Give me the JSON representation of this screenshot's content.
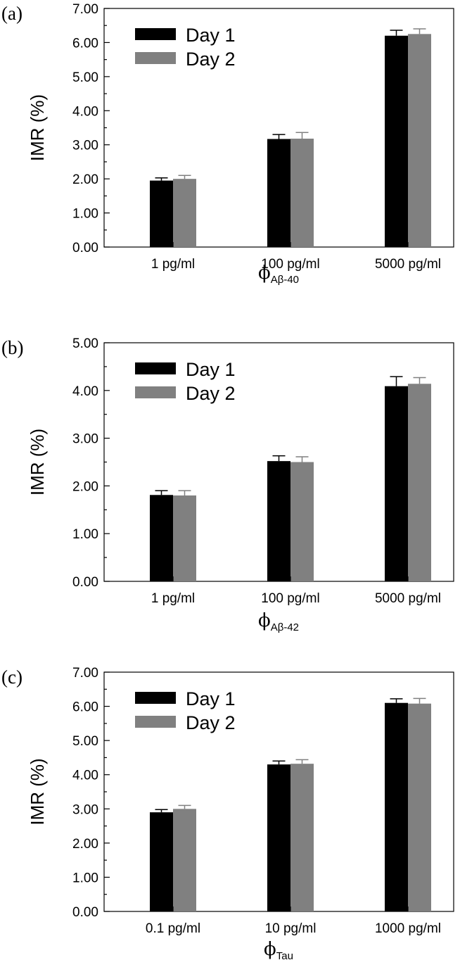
{
  "legend": {
    "series": [
      "Day 1",
      "Day 2"
    ]
  },
  "colors": {
    "day1": "#000000",
    "day2": "#808080",
    "error_day1": "#000000",
    "error_day2": "#808080"
  },
  "chart_data": [
    {
      "type": "bar",
      "panel_label": "(a)",
      "ylabel": "IMR (%)",
      "xlabel": {
        "symbol": "ϕ",
        "subscript": "Aβ-40"
      },
      "ylim": [
        0,
        7
      ],
      "yticks": [
        "0.00",
        "1.00",
        "2.00",
        "3.00",
        "4.00",
        "5.00",
        "6.00",
        "7.00"
      ],
      "categories": [
        "1 pg/ml",
        "100 pg/ml",
        "5000 pg/ml"
      ],
      "series": [
        {
          "name": "Day 1",
          "values": [
            1.95,
            3.17,
            6.2
          ],
          "errors": [
            0.08,
            0.13,
            0.16
          ]
        },
        {
          "name": "Day 2",
          "values": [
            2.0,
            3.18,
            6.25
          ],
          "errors": [
            0.1,
            0.18,
            0.15
          ]
        }
      ],
      "legend_position": "top-left",
      "grid": false
    },
    {
      "type": "bar",
      "panel_label": "(b)",
      "ylabel": "IMR (%)",
      "xlabel": {
        "symbol": "ϕ",
        "subscript": "Aβ-42"
      },
      "ylim": [
        0,
        5
      ],
      "yticks": [
        "0.00",
        "1.00",
        "2.00",
        "3.00",
        "4.00",
        "5.00"
      ],
      "categories": [
        "1 pg/ml",
        "100 pg/ml",
        "5000 pg/ml"
      ],
      "series": [
        {
          "name": "Day 1",
          "values": [
            1.81,
            2.52,
            4.09
          ],
          "errors": [
            0.09,
            0.11,
            0.2
          ]
        },
        {
          "name": "Day 2",
          "values": [
            1.8,
            2.5,
            4.14
          ],
          "errors": [
            0.1,
            0.11,
            0.13
          ]
        }
      ],
      "legend_position": "top-left",
      "grid": false
    },
    {
      "type": "bar",
      "panel_label": "(c)",
      "ylabel": "IMR (%)",
      "xlabel": {
        "symbol": "ϕ",
        "subscript": "Tau"
      },
      "ylim": [
        0,
        7
      ],
      "yticks": [
        "0.00",
        "1.00",
        "2.00",
        "3.00",
        "4.00",
        "5.00",
        "6.00",
        "7.00"
      ],
      "categories": [
        "0.1 pg/ml",
        "10 pg/ml",
        "1000 pg/ml"
      ],
      "series": [
        {
          "name": "Day 1",
          "values": [
            2.9,
            4.3,
            6.1
          ],
          "errors": [
            0.08,
            0.1,
            0.12
          ]
        },
        {
          "name": "Day 2",
          "values": [
            3.0,
            4.32,
            6.08
          ],
          "errors": [
            0.1,
            0.12,
            0.15
          ]
        }
      ],
      "legend_position": "top-left",
      "grid": false
    }
  ]
}
